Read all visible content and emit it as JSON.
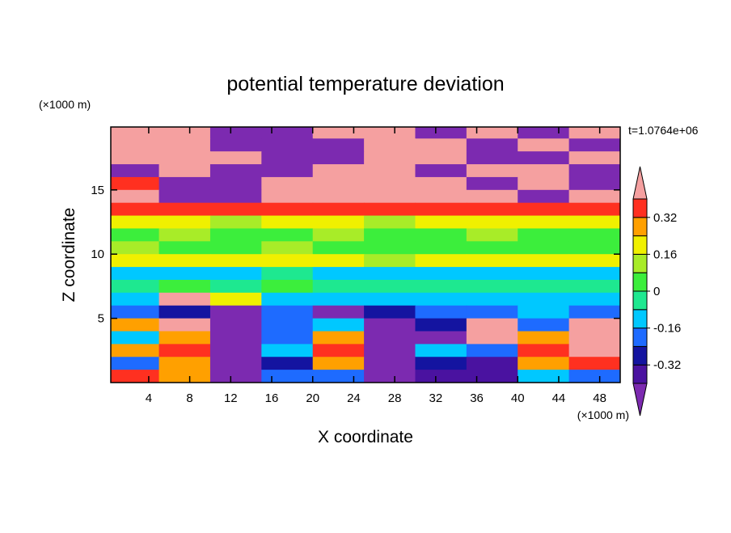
{
  "chart_data": {
    "type": "contour",
    "title": "potential temperature deviation",
    "xlabel": "X coordinate",
    "ylabel": "Z coordinate",
    "x_unit": "(×1000 m)",
    "y_unit": "(×1000 m)",
    "annotation": "t=1.0764e+06",
    "xlim": [
      0.3,
      50
    ],
    "ylim": [
      0,
      19.9
    ],
    "xticks": [
      4,
      8,
      12,
      16,
      20,
      24,
      28,
      32,
      36,
      40,
      44,
      48
    ],
    "yticks": [
      5,
      10,
      15
    ],
    "field": {
      "x": [
        2.5,
        7.5,
        12.5,
        17.5,
        22.5,
        27.5,
        32.5,
        37.5,
        42.5,
        47.5
      ],
      "z": [
        19.5,
        18.5,
        17.5,
        16.5,
        15.5,
        14.5,
        13.5,
        12.5,
        11.5,
        10.5,
        9.5,
        8.5,
        7.5,
        6.5,
        5.5,
        4.5,
        3.5,
        2.5,
        1.5,
        0.5
      ],
      "values": [
        [
          0.44,
          0.44,
          -0.44,
          -0.44,
          0.44,
          0.44,
          -0.44,
          0.44,
          -0.44,
          0.44
        ],
        [
          0.44,
          0.44,
          -0.44,
          -0.44,
          -0.44,
          0.44,
          0.44,
          -0.44,
          0.44,
          -0.44
        ],
        [
          0.44,
          0.44,
          0.44,
          -0.44,
          -0.44,
          0.44,
          0.44,
          -0.44,
          -0.44,
          0.44
        ],
        [
          -0.44,
          0.44,
          -0.44,
          -0.44,
          0.44,
          0.44,
          -0.44,
          0.44,
          0.44,
          -0.44
        ],
        [
          0.36,
          -0.44,
          -0.44,
          0.44,
          0.44,
          0.44,
          0.44,
          -0.44,
          0.44,
          -0.44
        ],
        [
          0.44,
          -0.44,
          -0.44,
          0.44,
          0.44,
          0.44,
          0.44,
          0.44,
          -0.44,
          0.44
        ],
        [
          0.36,
          0.36,
          0.36,
          0.36,
          0.36,
          0.36,
          0.36,
          0.36,
          0.36,
          0.36
        ],
        [
          0.2,
          0.2,
          0.12,
          0.2,
          0.2,
          0.12,
          0.2,
          0.2,
          0.2,
          0.2
        ],
        [
          0.04,
          0.12,
          0.04,
          0.04,
          0.12,
          0.04,
          0.04,
          0.12,
          0.04,
          0.04
        ],
        [
          0.12,
          0.04,
          0.04,
          0.12,
          0.04,
          0.04,
          0.04,
          0.04,
          0.04,
          0.04
        ],
        [
          0.2,
          0.2,
          0.2,
          0.2,
          0.2,
          0.12,
          0.2,
          0.2,
          0.2,
          0.2
        ],
        [
          -0.12,
          -0.12,
          -0.12,
          -0.04,
          -0.12,
          -0.12,
          -0.12,
          -0.12,
          -0.12,
          -0.12
        ],
        [
          -0.04,
          0.04,
          -0.04,
          0.04,
          -0.04,
          -0.04,
          -0.04,
          -0.04,
          -0.04,
          -0.04
        ],
        [
          -0.12,
          0.44,
          0.2,
          -0.12,
          -0.12,
          -0.12,
          -0.12,
          -0.12,
          -0.12,
          -0.12
        ],
        [
          -0.2,
          -0.28,
          -0.44,
          -0.2,
          -0.44,
          -0.28,
          -0.2,
          -0.2,
          -0.12,
          -0.2
        ],
        [
          0.28,
          0.44,
          -0.44,
          -0.2,
          -0.12,
          -0.44,
          -0.28,
          0.44,
          -0.2,
          0.44
        ],
        [
          -0.12,
          0.28,
          -0.44,
          -0.2,
          0.28,
          -0.44,
          -0.44,
          0.44,
          0.28,
          0.44
        ],
        [
          0.28,
          0.36,
          -0.44,
          -0.12,
          0.36,
          -0.44,
          -0.12,
          -0.2,
          0.36,
          0.44
        ],
        [
          -0.2,
          0.28,
          -0.44,
          -0.28,
          0.28,
          -0.44,
          -0.28,
          -0.36,
          0.28,
          0.36
        ],
        [
          0.36,
          0.28,
          -0.44,
          -0.2,
          -0.2,
          -0.44,
          -0.36,
          -0.36,
          -0.12,
          -0.2
        ]
      ]
    },
    "colorbar": {
      "levels": [
        -0.4,
        -0.32,
        -0.24,
        -0.16,
        -0.08,
        0,
        0.08,
        0.16,
        0.24,
        0.32,
        0.4
      ],
      "colors": [
        "#7c2ab0",
        "#4a12a0",
        "#1414a0",
        "#1e6bff",
        "#00c8ff",
        "#1ee890",
        "#3cee3c",
        "#a8ec28",
        "#f0f000",
        "#ffa000",
        "#ff3020",
        "#f5a0a0"
      ],
      "ticks": [
        -0.32,
        -0.16,
        0,
        0.16,
        0.32
      ]
    }
  }
}
